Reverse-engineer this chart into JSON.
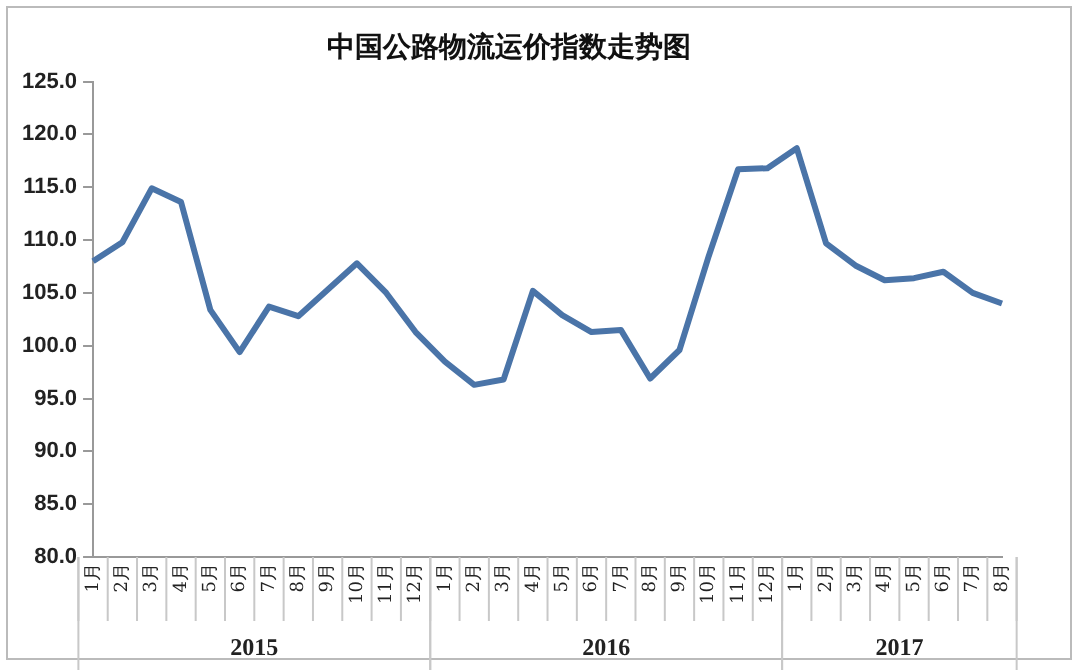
{
  "chart_data": {
    "type": "line",
    "title": "中国公路物流运价指数走势图",
    "categories": [
      "1月",
      "2月",
      "3月",
      "4月",
      "5月",
      "6月",
      "7月",
      "8月",
      "9月",
      "10月",
      "11月",
      "12月",
      "1月",
      "2月",
      "3月",
      "4月",
      "5月",
      "6月",
      "7月",
      "8月",
      "9月",
      "10月",
      "11月",
      "12月",
      "1月",
      "2月",
      "3月",
      "4月",
      "5月",
      "6月",
      "7月",
      "8月"
    ],
    "series": [
      {
        "color": "#4a74a8",
        "values": [
          108.0,
          109.8,
          114.9,
          113.6,
          103.4,
          99.4,
          103.7,
          102.8,
          105.3,
          107.8,
          105.0,
          101.3,
          98.5,
          96.3,
          96.8,
          105.2,
          102.9,
          101.3,
          101.5,
          96.9,
          99.6,
          108.5,
          116.7,
          116.8,
          118.7,
          109.7,
          107.6,
          106.2,
          106.4,
          107.0,
          105.0,
          104.0
        ]
      }
    ],
    "annotations": [
      "2015",
      "2016",
      "2017"
    ],
    "ylim": [
      80,
      125
    ],
    "yticks": [
      {
        "value": 80,
        "label": "80.0"
      },
      {
        "value": 85,
        "label": "85.0"
      },
      {
        "value": 90,
        "label": "90.0"
      },
      {
        "value": 95,
        "label": "95.0"
      },
      {
        "value": 100,
        "label": "100.0"
      },
      {
        "value": 105,
        "label": "105.0"
      },
      {
        "value": 110,
        "label": "110.0"
      },
      {
        "value": 115,
        "label": "115.0"
      },
      {
        "value": 120,
        "label": "120.0"
      },
      {
        "value": 125,
        "label": "125.0"
      }
    ],
    "grid": false,
    "legend": false,
    "marker": "none",
    "line_style": "solid"
  }
}
